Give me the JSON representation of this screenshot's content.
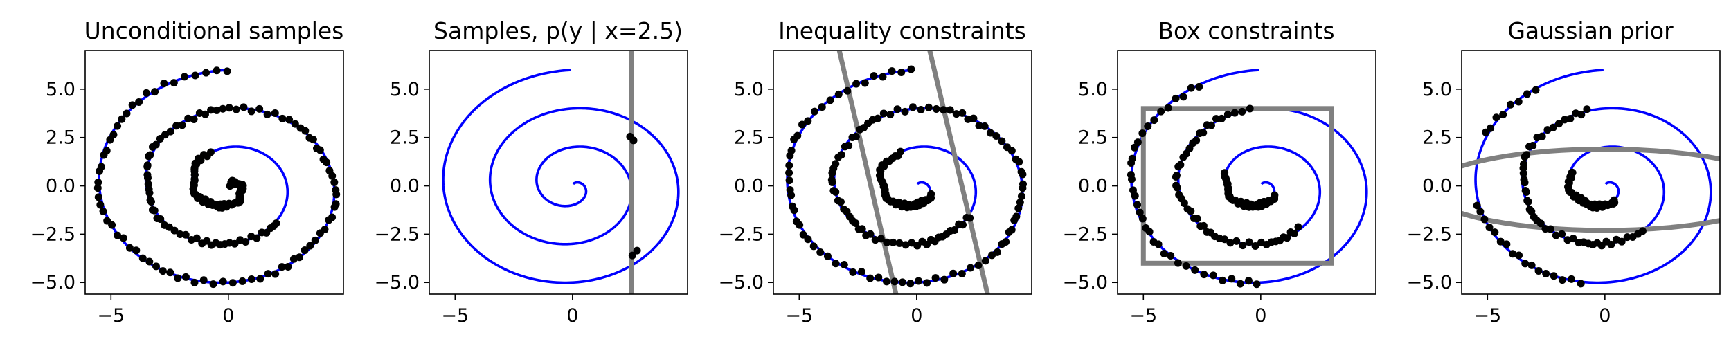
{
  "chart_data": [
    {
      "type": "scatter",
      "title": "Unconditional samples",
      "xlabel": "",
      "ylabel": "",
      "xlim": [
        -6.1,
        4.9
      ],
      "ylim": [
        -5.6,
        7.0
      ],
      "xticks": [
        -5,
        0
      ],
      "xtick_labels": [
        "−5",
        "0"
      ],
      "yticks": [
        -5.0,
        -2.5,
        0.0,
        2.5,
        5.0
      ],
      "ytick_labels": [
        "−5.0",
        "−2.5",
        "0.0",
        "2.5",
        "5.0"
      ],
      "grid": false,
      "series": [
        {
          "kind": "curve",
          "color": "#0000ff",
          "values": "spiral x = r·sin θ, y = r·cos θ, r = θ/π, θ ∈ [0, 2π] (first turn) and r = θ/π, θ ∈ [2π, 6π] outer"
        },
        {
          "kind": "points",
          "color": "#000000",
          "sample_range": [
            [
              0.3,
              5.9
            ],
            [
              8.6,
              18.85
            ]
          ]
        }
      ],
      "constraint": null
    },
    {
      "type": "scatter",
      "title": "Samples, p(y | x=2.5)",
      "xlabel": "",
      "ylabel": "",
      "xlim": [
        -6.1,
        4.9
      ],
      "ylim": [
        -5.6,
        7.0
      ],
      "xticks": [
        -5,
        0
      ],
      "xtick_labels": [
        "−5",
        "0"
      ],
      "yticks": [
        -5.0,
        -2.5,
        0.0,
        2.5,
        5.0
      ],
      "ytick_labels": [
        "−5.0",
        "−2.5",
        "0.0",
        "2.5",
        "5.0"
      ],
      "grid": false,
      "series": [
        {
          "kind": "curve",
          "color": "#0000ff"
        },
        {
          "kind": "points",
          "color": "#000000",
          "points": [
            [
              2.45,
              2.55
            ],
            [
              2.6,
              2.35
            ],
            [
              2.55,
              -3.6
            ],
            [
              2.75,
              -3.35
            ]
          ]
        }
      ],
      "constraint": {
        "kind": "vline",
        "x": 2.5,
        "color": "#808080"
      }
    },
    {
      "type": "scatter",
      "title": "Inequality constraints",
      "xlabel": "",
      "ylabel": "",
      "xlim": [
        -6.1,
        4.9
      ],
      "ylim": [
        -5.6,
        7.0
      ],
      "xticks": [
        -5,
        0
      ],
      "xtick_labels": [
        "−5",
        "0"
      ],
      "yticks": [
        -5.0,
        -2.5,
        0.0,
        2.5,
        5.0
      ],
      "ytick_labels": [
        "−5.0",
        "−2.5",
        "0.0",
        "2.5",
        "5.0"
      ],
      "grid": false,
      "series": [
        {
          "kind": "curve",
          "color": "#0000ff"
        },
        {
          "kind": "points",
          "color": "#000000",
          "sample_range": [
            [
              2.2,
              5.9
            ],
            [
              8.45,
              18.85
            ]
          ],
          "band": [
            [
              -3.35,
              7.3
            ],
            [
              -0.85,
              -5.75
            ],
            [
              0.5,
              7.3
            ],
            [
              3.05,
              -5.75
            ]
          ]
        }
      ],
      "constraint": {
        "kind": "lines",
        "color": "#808080",
        "lines": [
          [
            [
              -3.35,
              7.3
            ],
            [
              -0.85,
              -5.75
            ]
          ],
          [
            [
              0.5,
              7.3
            ],
            [
              3.05,
              -5.75
            ]
          ]
        ]
      }
    },
    {
      "type": "scatter",
      "title": "Box constraints",
      "xlabel": "",
      "ylabel": "",
      "xlim": [
        -6.1,
        4.9
      ],
      "ylim": [
        -5.6,
        7.0
      ],
      "xticks": [
        -5,
        0
      ],
      "xtick_labels": [
        "−5",
        "0"
      ],
      "yticks": [
        -5.0,
        -2.5,
        0.0,
        2.5,
        5.0
      ],
      "ytick_labels": [
        "−5.0",
        "−2.5",
        "0.0",
        "2.5",
        "5.0"
      ],
      "grid": false,
      "series": [
        {
          "kind": "curve",
          "color": "#0000ff"
        },
        {
          "kind": "points",
          "color": "#000000",
          "sample_range": [
            [
              2.3,
              5.2
            ],
            [
              8.75,
              12.5
            ],
            [
              15.7,
              17.1
            ],
            [
              17.15,
              18.4
            ]
          ],
          "box": [
            -5,
            3,
            -4,
            4
          ]
        }
      ],
      "constraint": {
        "kind": "box",
        "color": "#808080",
        "x": [
          -5,
          3
        ],
        "y": [
          -4,
          4
        ]
      }
    },
    {
      "type": "scatter",
      "title": "Gaussian prior",
      "xlabel": "",
      "ylabel": "",
      "xlim": [
        -6.1,
        4.9
      ],
      "ylim": [
        -5.6,
        7.0
      ],
      "xticks": [
        -5,
        0
      ],
      "xtick_labels": [
        "−5",
        "0"
      ],
      "yticks": [
        -5.0,
        -2.5,
        0.0,
        2.5,
        5.0
      ],
      "ytick_labels": [
        "−5.0",
        "−2.5",
        "0.0",
        "2.5",
        "5.0"
      ],
      "grid": false,
      "series": [
        {
          "kind": "curve",
          "color": "#0000ff"
        },
        {
          "kind": "points",
          "color": "#000000",
          "sample_range": [
            [
              2.7,
              5.2
            ],
            [
              8.85,
              12.4
            ],
            [
              15.85,
              17.1
            ],
            [
              17.7,
              18.3
            ]
          ],
          "ellipse": [
            0,
            -0.2,
            7.5,
            2.1
          ]
        }
      ],
      "constraint": {
        "kind": "ellipse",
        "color": "#808080",
        "cx": 0,
        "cy": -0.2,
        "rx": 7.5,
        "ry": 2.1
      }
    }
  ]
}
